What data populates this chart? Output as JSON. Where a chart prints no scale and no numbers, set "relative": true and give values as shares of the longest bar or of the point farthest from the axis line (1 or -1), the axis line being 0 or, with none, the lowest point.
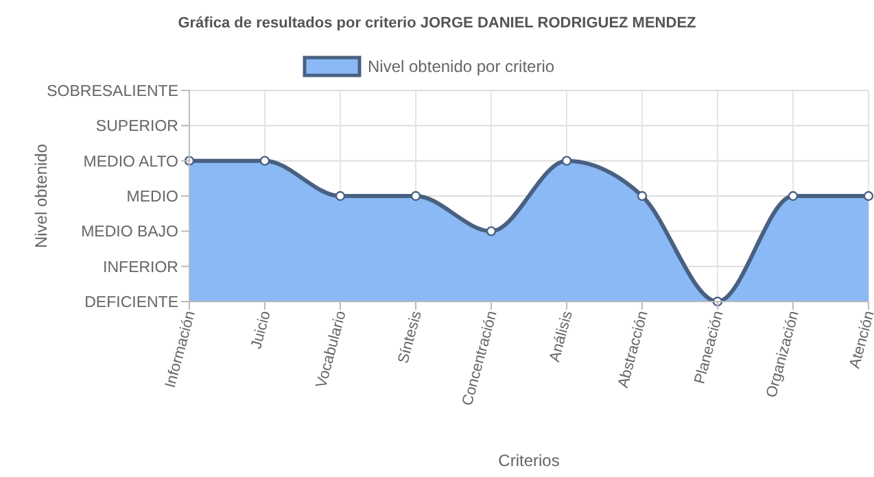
{
  "chart_data": {
    "type": "area",
    "title": "Gráfica de resultados por criterio JORGE DANIEL RODRIGUEZ MENDEZ",
    "xlabel": "Criterios",
    "annotations": [
      "Nivel obtenido"
    ],
    "categories": [
      "Información",
      "Juicio",
      "Vocabulario",
      "Síntesis",
      "Concentración",
      "Análisis",
      "Abstracción",
      "Planeación",
      "Organización",
      "Atención"
    ],
    "y_categories": [
      "SOBRESALIENTE",
      "SUPERIOR",
      "MEDIO ALTO",
      "MEDIO",
      "MEDIO BAJO",
      "INFERIOR",
      "DEFICIENTE"
    ],
    "relative": true,
    "series": [
      {
        "name": "Nivel obtenido por criterio",
        "color": "#8ab9f6",
        "values": [
          1,
          1,
          0.75,
          0.75,
          0.5,
          1,
          0.75,
          0,
          0.75,
          0.75
        ]
      }
    ],
    "ylim": [
      0,
      1.5
    ],
    "grid": true,
    "legend": "top",
    "marker": "circle",
    "line_style": "solid"
  }
}
